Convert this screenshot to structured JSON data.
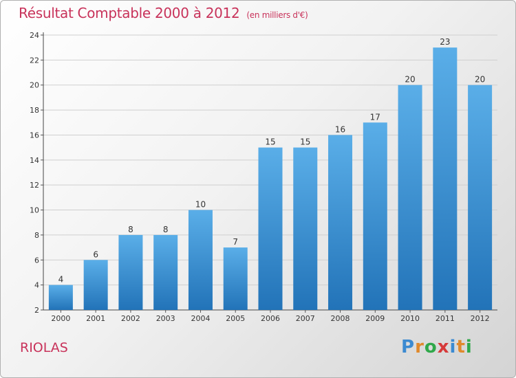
{
  "chart_data": {
    "type": "bar",
    "title": "Résultat Comptable 2000 à 2012",
    "subtitle": "(en milliers d'€)",
    "categories": [
      "2000",
      "2001",
      "2002",
      "2003",
      "2004",
      "2005",
      "2006",
      "2007",
      "2008",
      "2009",
      "2010",
      "2011",
      "2012"
    ],
    "values": [
      4,
      6,
      8,
      8,
      10,
      7,
      15,
      15,
      16,
      17,
      20,
      23,
      20
    ],
    "ylim": [
      2,
      24
    ],
    "yticks": [
      2,
      4,
      6,
      8,
      10,
      12,
      14,
      16,
      18,
      20,
      22,
      24
    ],
    "grid": true,
    "bar_color": "#3a8fd6"
  },
  "place_name": "RIOLAS",
  "logo": {
    "letters": [
      "P",
      "r",
      "o",
      "x",
      "i",
      "t",
      "i"
    ],
    "colors": [
      "#3b8ad1",
      "#e0892b",
      "#2fa84a",
      "#d63a3a",
      "#3b8ad1",
      "#e0892b",
      "#2fa84a"
    ]
  },
  "colors": {
    "title": "#c8325a",
    "grid": "#cfcfcf"
  }
}
